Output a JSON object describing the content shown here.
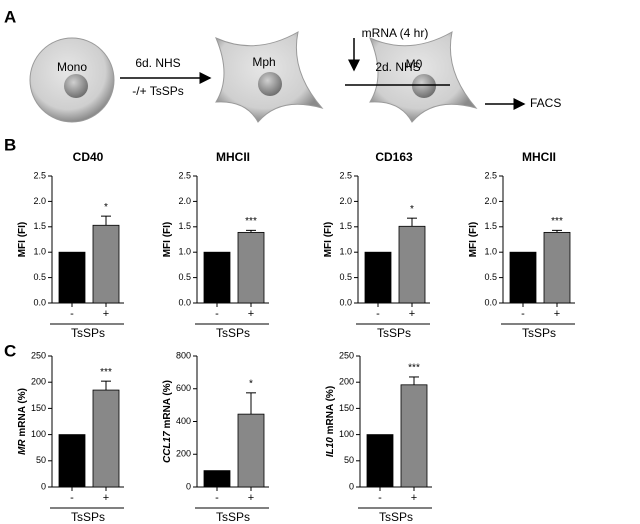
{
  "panels": [
    "A",
    "B",
    "C"
  ],
  "diagram": {
    "cells": [
      "Mono",
      "Mph",
      "M0"
    ],
    "step1": [
      "6d. NHS",
      "-/+ TsSPs"
    ],
    "step2": [
      "mRNA (4 hr)",
      "2d. NHS"
    ],
    "readout": "FACS"
  },
  "chart_data": [
    {
      "type": "bar",
      "title": "CD40",
      "ylabel": "MFI (FI)",
      "categories": [
        "-",
        "+"
      ],
      "values": [
        1.0,
        1.53
      ],
      "errors": [
        null,
        0.18
      ],
      "significance": "*",
      "group_label": "TsSPs",
      "colors": [
        "#000000",
        "#888888"
      ],
      "ylim": [
        0,
        2.5
      ],
      "yticks": [
        {
          "value": 0,
          "label": "0.0"
        },
        0.5,
        {
          "value": 1,
          "label": "1.0"
        },
        1.5,
        {
          "value": 2,
          "label": "2.0"
        },
        2.5
      ]
    },
    {
      "type": "bar",
      "title": "MHCII",
      "ylabel": "MFI (FI)",
      "categories": [
        "-",
        "+"
      ],
      "values": [
        1.0,
        1.39
      ],
      "errors": [
        null,
        0.04
      ],
      "significance": "***",
      "group_label": "TsSPs",
      "colors": [
        "#000000",
        "#888888"
      ],
      "ylim": [
        0,
        2.5
      ],
      "yticks": [
        {
          "value": 0,
          "label": "0.0"
        },
        0.5,
        {
          "value": 1,
          "label": "1.0"
        },
        1.5,
        {
          "value": 2,
          "label": "2.0"
        },
        2.5
      ]
    },
    {
      "type": "bar",
      "title": "CD163",
      "ylabel": "MFI (FI)",
      "categories": [
        "-",
        "+"
      ],
      "values": [
        1.0,
        1.51
      ],
      "errors": [
        null,
        0.16
      ],
      "significance": "*",
      "group_label": "TsSPs",
      "colors": [
        "#000000",
        "#888888"
      ],
      "ylim": [
        0,
        2.5
      ],
      "yticks": [
        {
          "value": 0,
          "label": "0.0"
        },
        0.5,
        {
          "value": 1,
          "label": "1.0"
        },
        1.5,
        {
          "value": 2,
          "label": "2.0"
        },
        2.5
      ]
    },
    {
      "type": "bar",
      "title": "MHCII",
      "ylabel": "MFI (FI)",
      "categories": [
        "-",
        "+"
      ],
      "values": [
        1.0,
        1.39
      ],
      "errors": [
        null,
        0.04
      ],
      "significance": "***",
      "group_label": "TsSPs",
      "colors": [
        "#000000",
        "#888888"
      ],
      "ylim": [
        0,
        2.5
      ],
      "yticks": [
        {
          "value": 0,
          "label": "0.0"
        },
        0.5,
        {
          "value": 1,
          "label": "1.0"
        },
        1.5,
        {
          "value": 2,
          "label": "2.0"
        },
        2.5
      ]
    },
    {
      "type": "bar",
      "ylabel_gene": "MR",
      "ylabel": "mRNA (%)",
      "categories": [
        "-",
        "+"
      ],
      "values": [
        100,
        185
      ],
      "errors": [
        null,
        17
      ],
      "significance": "***",
      "group_label": "TsSPs",
      "colors": [
        "#000000",
        "#888888"
      ],
      "ylim": [
        0,
        250
      ],
      "yticks": [
        0,
        50,
        100,
        150,
        200,
        250
      ]
    },
    {
      "type": "bar",
      "ylabel_gene": "CCL17",
      "ylabel": "mRNA (%)",
      "categories": [
        "-",
        "+"
      ],
      "values": [
        100,
        445
      ],
      "errors": [
        null,
        130
      ],
      "significance": "*",
      "group_label": "TsSPs",
      "colors": [
        "#000000",
        "#888888"
      ],
      "ylim": [
        0,
        800
      ],
      "yticks": [
        0,
        200,
        400,
        600,
        800
      ]
    },
    {
      "type": "bar",
      "ylabel_gene": "IL10",
      "ylabel": "mRNA (%)",
      "categories": [
        "-",
        "+"
      ],
      "values": [
        100,
        195
      ],
      "errors": [
        null,
        15
      ],
      "significance": "***",
      "group_label": "TsSPs",
      "colors": [
        "#000000",
        "#888888"
      ],
      "ylim": [
        0,
        250
      ],
      "yticks": [
        0,
        50,
        100,
        150,
        200,
        250
      ]
    }
  ]
}
